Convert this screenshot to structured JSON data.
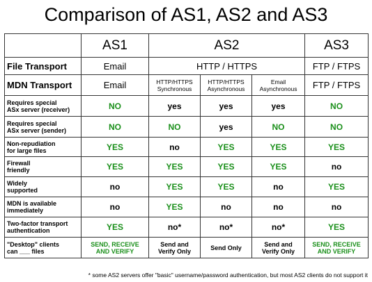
{
  "title": "Comparison of AS1, AS2 and AS3",
  "header": {
    "as1": "AS1",
    "as2": "AS2",
    "as3": "AS3"
  },
  "rows": {
    "file_transport": {
      "label": "File Transport",
      "as1": "Email",
      "as2": "HTTP / HTTPS",
      "as3": "FTP / FTPS"
    },
    "mdn_transport": {
      "label": "MDN Transport",
      "as1": "Email",
      "as2_sync_line1": "HTTP/HTTPS",
      "as2_sync_line2": "Synchronous",
      "as2_async_line1": "HTTP/HTTPS",
      "as2_async_line2": "Asynchronous",
      "as2_email_line1": "Email",
      "as2_email_line2": "Asynchronous",
      "as3": "FTP / FTPS"
    },
    "receiver": {
      "label_line1": "Requires special",
      "label_line2": "ASx server (receiver)",
      "values": [
        "NO",
        "yes",
        "yes",
        "yes",
        "NO"
      ]
    },
    "sender": {
      "label_line1": "Requires special",
      "label_line2": "ASx server (sender)",
      "values": [
        "NO",
        "NO",
        "yes",
        "NO",
        "NO"
      ]
    },
    "nonrep": {
      "label_line1": "Non-repudiation",
      "label_line2": "for large files",
      "values": [
        "YES",
        "no",
        "YES",
        "YES",
        "YES"
      ]
    },
    "firewall": {
      "label_line1": "Firewall",
      "label_line2": "friendly",
      "values": [
        "YES",
        "YES",
        "YES",
        "YES",
        "no"
      ]
    },
    "widely": {
      "label_line1": "Widely",
      "label_line2": "supported",
      "values": [
        "no",
        "YES",
        "YES",
        "no",
        "YES"
      ]
    },
    "mdn_avail": {
      "label_line1": "MDN is available",
      "label_line2": "immediately",
      "values": [
        "no",
        "YES",
        "no",
        "no",
        "no"
      ]
    },
    "twofactor": {
      "label_line1": "Two-factor transport",
      "label_line2": "authentication",
      "values": [
        "YES",
        "no*",
        "no*",
        "no*",
        "YES"
      ]
    },
    "desktop": {
      "label_line1": "\"Desktop\" clients",
      "label_line2": "can ___ files",
      "as1_line1": "SEND,  RECEIVE",
      "as1_line2": "AND VERIFY",
      "as2_sync_line1": "Send and",
      "as2_sync_line2": "Verify Only",
      "as2_async": "Send Only",
      "as2_email_line1": "Send and",
      "as2_email_line2": "Verify Only",
      "as3_line1": "SEND,  RECEIVE",
      "as3_line2": "AND VERIFY"
    }
  },
  "footnote": "* some AS2 servers offer \"basic\" username/password authentication, but most AS2 clients do not support it",
  "colors": {
    "positive": "#1a8f1a",
    "neutral": "#000000",
    "border": "#333333"
  }
}
